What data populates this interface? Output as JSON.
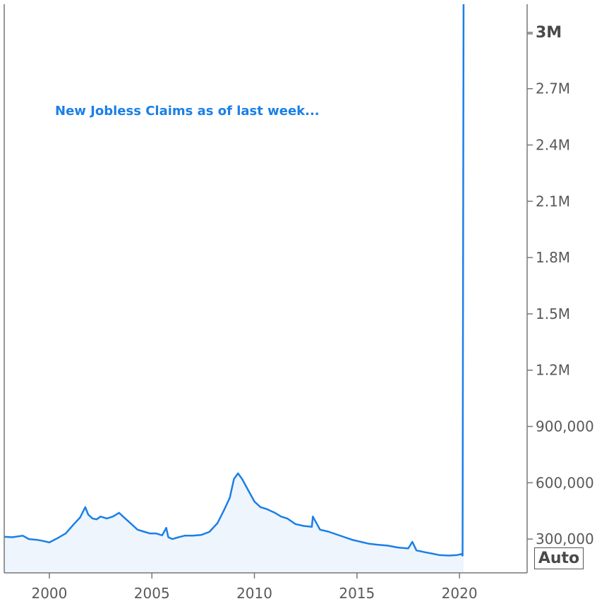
{
  "chart_data": {
    "type": "area",
    "title": "",
    "annotation": "New Jobless Claims as of last week...",
    "xlabel": "",
    "ylabel": "",
    "xlim": [
      1997.8,
      2023.3
    ],
    "ylim": [
      120000,
      3150000
    ],
    "x_ticks": [
      2000,
      2005,
      2010,
      2015,
      2020
    ],
    "x_tick_labels": [
      "2000",
      "2005",
      "2010",
      "2015",
      "2020"
    ],
    "y_ticks": [
      300000,
      600000,
      900000,
      1200000,
      1500000,
      1800000,
      2100000,
      2400000,
      2700000,
      3000000
    ],
    "y_tick_labels": [
      "300,000",
      "600,000",
      "900,000",
      "1.2M",
      "1.5M",
      "1.8M",
      "2.1M",
      "2.4M",
      "2.7M",
      "3M"
    ],
    "highlight_tick": "3M",
    "legend": "none",
    "grid": false,
    "colors": {
      "line": "#1a7fe8",
      "fill": "#eef5fc",
      "axis": "#777777"
    },
    "series": [
      {
        "x": [
          1997.8,
          1998.2,
          1998.7,
          1999.0,
          1999.4,
          1999.7,
          2000.0,
          2000.4,
          2000.8,
          2001.2,
          2001.5,
          2001.75,
          2001.9,
          2002.1,
          2002.3,
          2002.5,
          2002.8,
          2003.1,
          2003.4,
          2003.7,
          2004.0,
          2004.3,
          2004.6,
          2004.9,
          2005.2,
          2005.5,
          2005.7,
          2005.8,
          2006.0,
          2006.3,
          2006.6,
          2007.0,
          2007.4,
          2007.8,
          2008.2,
          2008.5,
          2008.8,
          2009.0,
          2009.2,
          2009.4,
          2009.7,
          2010.0,
          2010.3,
          2010.6,
          2011.0,
          2011.3,
          2011.6,
          2012.0,
          2012.4,
          2012.8,
          2012.85,
          2013.2,
          2013.6,
          2014.0,
          2014.4,
          2014.8,
          2015.2,
          2015.6,
          2016.0,
          2016.5,
          2017.0,
          2017.5,
          2017.7,
          2017.9,
          2018.3,
          2018.7,
          2019.0,
          2019.5,
          2019.9,
          2020.1,
          2020.15,
          2020.2
        ],
        "values": [
          312000,
          310000,
          318000,
          300000,
          296000,
          290000,
          282000,
          305000,
          330000,
          380000,
          415000,
          470000,
          430000,
          410000,
          405000,
          420000,
          410000,
          420000,
          440000,
          410000,
          380000,
          350000,
          340000,
          330000,
          330000,
          320000,
          360000,
          310000,
          300000,
          310000,
          318000,
          318000,
          322000,
          338000,
          385000,
          450000,
          520000,
          620000,
          650000,
          620000,
          560000,
          500000,
          470000,
          460000,
          440000,
          420000,
          410000,
          380000,
          370000,
          365000,
          420000,
          350000,
          340000,
          325000,
          310000,
          295000,
          285000,
          275000,
          270000,
          265000,
          255000,
          250000,
          285000,
          240000,
          230000,
          222000,
          215000,
          212000,
          215000,
          220000,
          212000,
          3283000
        ]
      }
    ]
  },
  "controls": {
    "scale_button": "Auto"
  }
}
